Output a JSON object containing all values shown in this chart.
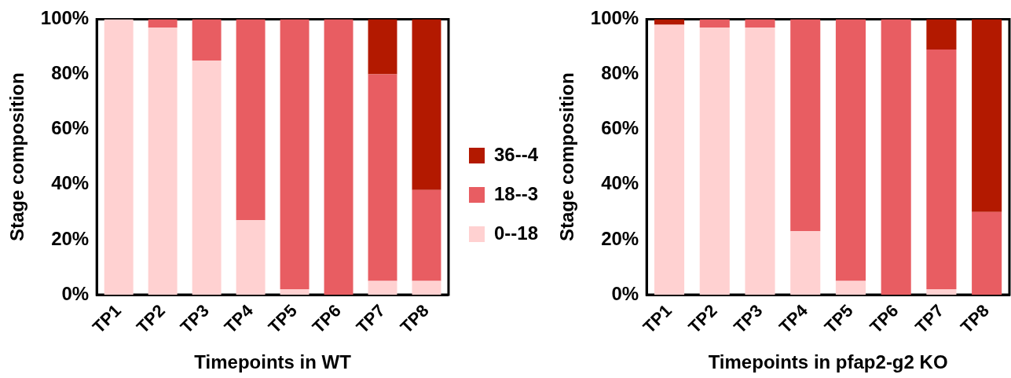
{
  "chart_data": [
    {
      "type": "bar",
      "stacked": true,
      "xlabel": "Timepoints in WT",
      "ylabel": "Stage composition",
      "categories": [
        "TP1",
        "TP2",
        "TP3",
        "TP4",
        "TP5",
        "TP6",
        "TP7",
        "TP8"
      ],
      "series": [
        {
          "name": "0--18",
          "color": "#ffd1d1",
          "values": [
            100,
            97,
            85,
            27,
            2,
            0,
            5,
            5
          ]
        },
        {
          "name": "18--3",
          "color": "#e85d62",
          "values": [
            0,
            3,
            15,
            73,
            98,
            100,
            75,
            33
          ]
        },
        {
          "name": "36--4",
          "color": "#b31900",
          "values": [
            0,
            0,
            0,
            0,
            0,
            0,
            20,
            62
          ]
        }
      ],
      "ylim": [
        0,
        100
      ],
      "yticks": [
        {
          "value": 0,
          "label": "0%"
        },
        {
          "value": 20,
          "label": "20%"
        },
        {
          "value": 40,
          "label": "40%"
        },
        {
          "value": 60,
          "label": "60%"
        },
        {
          "value": 80,
          "label": "80%"
        },
        {
          "value": 100,
          "label": "100%"
        }
      ],
      "legend": "right"
    },
    {
      "type": "bar",
      "stacked": true,
      "xlabel": "Timepoints in pfap2-g2 KO",
      "ylabel": "Stage composition",
      "categories": [
        "TP1",
        "TP2",
        "TP3",
        "TP4",
        "TP5",
        "TP6",
        "TP7",
        "TP8"
      ],
      "series": [
        {
          "color": "#ffd1d1",
          "values": [
            98,
            97,
            97,
            23,
            5,
            0,
            2,
            0
          ]
        },
        {
          "color": "#e85d62",
          "values": [
            0,
            3,
            3,
            77,
            95,
            100,
            87,
            30
          ]
        },
        {
          "color": "#b31900",
          "values": [
            2,
            0,
            0,
            0,
            0,
            0,
            11,
            70
          ]
        }
      ],
      "ylim": [
        0,
        100
      ],
      "yticks": [
        {
          "value": 0,
          "label": "0%"
        },
        {
          "value": 20,
          "label": "20%"
        },
        {
          "value": 40,
          "label": "40%"
        },
        {
          "value": 60,
          "label": "60%"
        },
        {
          "value": 80,
          "label": "80%"
        },
        {
          "value": 100,
          "label": "100%"
        }
      ]
    }
  ]
}
